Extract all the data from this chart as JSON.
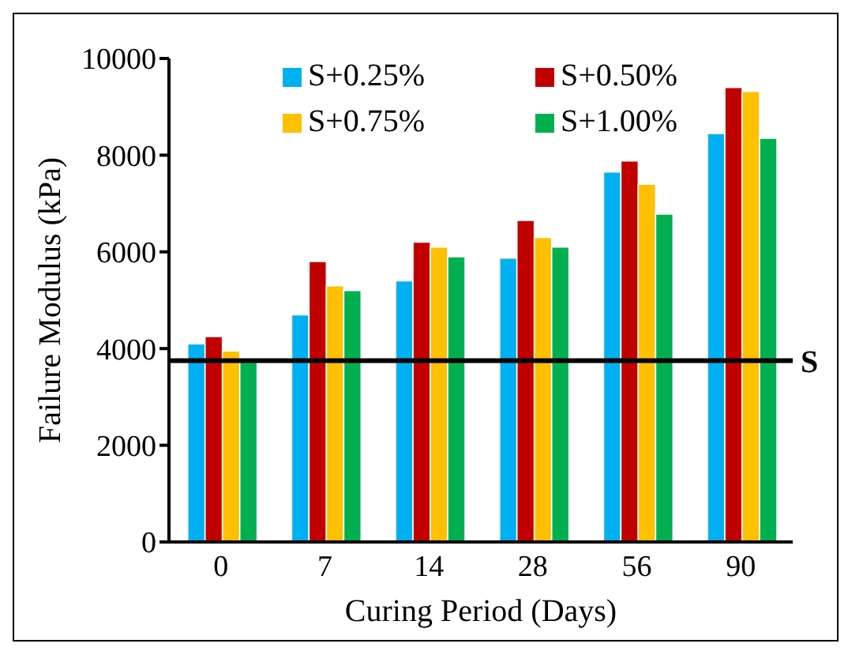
{
  "chart_data": {
    "type": "bar",
    "xlabel": "Curing Period (Days)",
    "ylabel": "Failure Modulus (kPa)",
    "categories": [
      "0",
      "7",
      "14",
      "28",
      "56",
      "90"
    ],
    "series": [
      {
        "name": "S+0.25%",
        "color": "#00b0f0",
        "values": [
          4100,
          4700,
          5400,
          5870,
          7650,
          8450
        ]
      },
      {
        "name": "S+0.50%",
        "color": "#c00000",
        "values": [
          4250,
          5800,
          6200,
          6650,
          7880,
          9400
        ]
      },
      {
        "name": "S+0.75%",
        "color": "#ffc000",
        "values": [
          3950,
          5300,
          6100,
          6300,
          7400,
          9320
        ]
      },
      {
        "name": "S+1.00%",
        "color": "#00b050",
        "values": [
          3720,
          5200,
          5900,
          6100,
          6780,
          8350
        ]
      }
    ],
    "ylim": [
      0,
      10000
    ],
    "yticks": [
      0,
      2000,
      4000,
      6000,
      8000,
      10000
    ],
    "grid": false,
    "legend": "top",
    "ref_lines": [
      {
        "axis": "y",
        "value": 3750,
        "label": "S",
        "color": "#000000"
      }
    ]
  }
}
